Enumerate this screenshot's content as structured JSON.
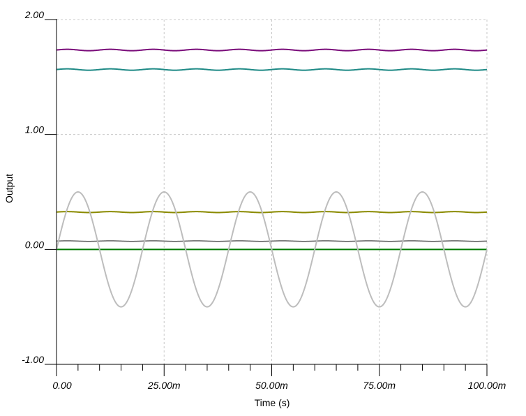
{
  "chart_data": {
    "type": "line",
    "xlabel": "Time (s)",
    "ylabel": "Output",
    "xlim": [
      0,
      0.1
    ],
    "ylim": [
      -1,
      2
    ],
    "grid": true,
    "x_ticks": [
      {
        "value": 0,
        "label": "0.00"
      },
      {
        "value": 0.025,
        "label": "25.00m"
      },
      {
        "value": 0.05,
        "label": "50.00m"
      },
      {
        "value": 0.075,
        "label": "75.00m"
      },
      {
        "value": 0.1,
        "label": "100.00m"
      }
    ],
    "y_ticks": [
      {
        "value": -1,
        "label": "-1.00"
      },
      {
        "value": 0,
        "label": "0.00"
      },
      {
        "value": 1,
        "label": "1.00"
      },
      {
        "value": 2,
        "label": "2.00"
      }
    ],
    "series": [
      {
        "kind": "ripple",
        "color": "#7a0c7a",
        "offset": 1.735,
        "amplitude": 0.006,
        "frequency_hz": 100,
        "phase": 0
      },
      {
        "kind": "ripple",
        "color": "#1f8a86",
        "offset": 1.565,
        "amplitude": 0.006,
        "frequency_hz": 100,
        "phase": 0
      },
      {
        "kind": "ripple",
        "color": "#8a8a00",
        "offset": 0.325,
        "amplitude": 0.004,
        "frequency_hz": 100,
        "phase": 0
      },
      {
        "kind": "ripple",
        "color": "#808080",
        "offset": 0.072,
        "amplitude": 0.003,
        "frequency_hz": 100,
        "phase": 0
      },
      {
        "kind": "ripple",
        "color": "#007a00",
        "offset": 0.0,
        "amplitude": 0.0,
        "frequency_hz": 100,
        "phase": 0
      },
      {
        "kind": "clipped_sine",
        "color": "#bdbdbd",
        "offset": 0.0,
        "amplitude": 0.5,
        "frequency_hz": 50,
        "phase": 0,
        "clip_low": -0.5,
        "clip_high": 0.5
      }
    ],
    "x_minor_ticks_per_major": 5
  }
}
